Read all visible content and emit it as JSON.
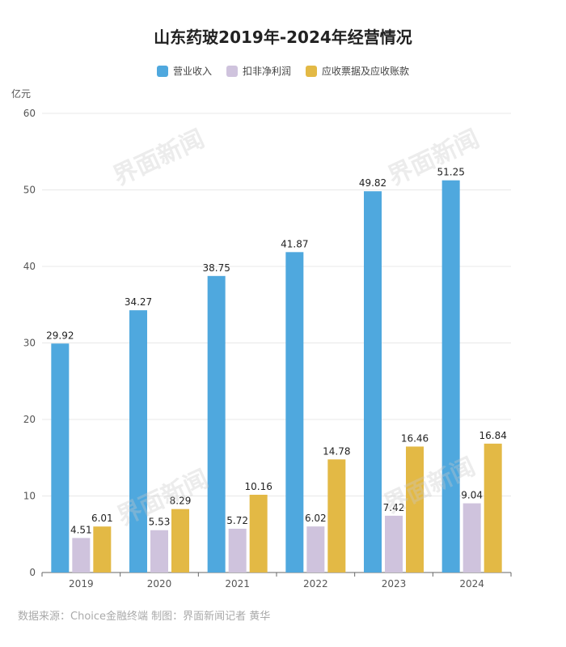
{
  "chart_data": {
    "type": "bar",
    "title": "山东药玻2019年-2024年经营情况",
    "unit": "亿元",
    "categories": [
      "2019",
      "2020",
      "2021",
      "2022",
      "2023",
      "2024"
    ],
    "ylim": [
      0,
      60
    ],
    "yticks": [
      0,
      10,
      20,
      30,
      40,
      50,
      60
    ],
    "grid": true,
    "legend_position": "top-center",
    "series": [
      {
        "name": "营业收入",
        "color": "#4FA8DE",
        "values": [
          29.92,
          34.27,
          38.75,
          41.87,
          49.82,
          51.25
        ]
      },
      {
        "name": "扣非净利润",
        "color": "#CFC3DD",
        "values": [
          4.51,
          5.53,
          5.72,
          6.02,
          7.42,
          9.04
        ]
      },
      {
        "name": "应收票据及应收账款",
        "color": "#E3B945",
        "values": [
          6.01,
          8.29,
          10.16,
          14.78,
          16.46,
          16.84
        ]
      }
    ]
  },
  "source_note": "数据来源：Choice金融终端 制图：界面新闻记者 黄华",
  "watermark": "界面新闻"
}
